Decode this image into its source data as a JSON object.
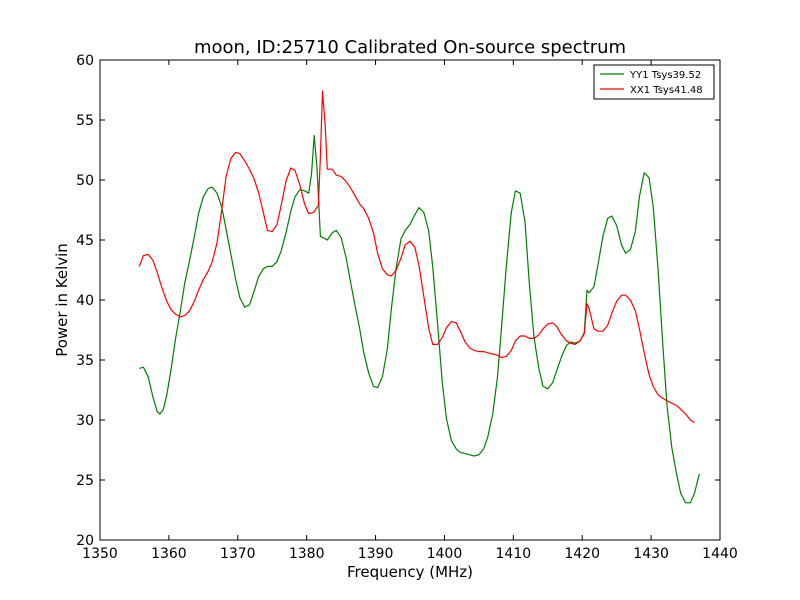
{
  "chart_data": {
    "type": "line",
    "title": "moon, ID:25710 Calibrated On-source spectrum",
    "xlabel": "Frequency (MHz)",
    "ylabel": "Power in Kelvin",
    "xlim": [
      1350,
      1440
    ],
    "ylim": [
      20,
      60
    ],
    "xticks": [
      1350,
      1360,
      1370,
      1380,
      1390,
      1400,
      1410,
      1420,
      1430,
      1440
    ],
    "yticks": [
      20,
      25,
      30,
      35,
      40,
      45,
      50,
      55,
      60
    ],
    "grid": false,
    "legend": {
      "position": "top-right"
    },
    "series": [
      {
        "name": "YY1 Tsys39.52",
        "color": "#008000",
        "points": [
          [
            1355.7,
            34.3
          ],
          [
            1356.3,
            34.4
          ],
          [
            1357.0,
            33.6
          ],
          [
            1357.7,
            31.9
          ],
          [
            1358.3,
            30.7
          ],
          [
            1358.7,
            30.5
          ],
          [
            1359.2,
            30.9
          ],
          [
            1359.7,
            32.1
          ],
          [
            1360.3,
            34.2
          ],
          [
            1361.0,
            36.9
          ],
          [
            1361.7,
            39.2
          ],
          [
            1362.3,
            41.4
          ],
          [
            1363.0,
            43.3
          ],
          [
            1363.7,
            45.3
          ],
          [
            1364.3,
            47.2
          ],
          [
            1365.0,
            48.6
          ],
          [
            1365.7,
            49.3
          ],
          [
            1366.3,
            49.4
          ],
          [
            1367.0,
            48.9
          ],
          [
            1367.7,
            47.7
          ],
          [
            1368.3,
            45.9
          ],
          [
            1369.0,
            43.8
          ],
          [
            1369.7,
            41.7
          ],
          [
            1370.3,
            40.2
          ],
          [
            1371.0,
            39.4
          ],
          [
            1371.7,
            39.6
          ],
          [
            1372.3,
            40.6
          ],
          [
            1373.0,
            41.9
          ],
          [
            1373.7,
            42.6
          ],
          [
            1374.3,
            42.8
          ],
          [
            1375.0,
            42.8
          ],
          [
            1375.7,
            43.2
          ],
          [
            1376.3,
            44.1
          ],
          [
            1377.0,
            45.6
          ],
          [
            1377.7,
            47.4
          ],
          [
            1378.3,
            48.6
          ],
          [
            1379.0,
            49.2
          ],
          [
            1379.7,
            49.1
          ],
          [
            1380.3,
            48.9
          ],
          [
            1380.7,
            50.5
          ],
          [
            1381.1,
            53.7
          ],
          [
            1381.5,
            51.0
          ],
          [
            1382.0,
            45.3
          ],
          [
            1382.7,
            45.1
          ],
          [
            1383.0,
            45.0
          ],
          [
            1383.7,
            45.6
          ],
          [
            1384.3,
            45.8
          ],
          [
            1385.0,
            45.2
          ],
          [
            1385.7,
            43.6
          ],
          [
            1386.3,
            41.7
          ],
          [
            1387.0,
            39.6
          ],
          [
            1387.7,
            37.6
          ],
          [
            1388.3,
            35.6
          ],
          [
            1389.0,
            33.9
          ],
          [
            1389.7,
            32.8
          ],
          [
            1390.3,
            32.7
          ],
          [
            1391.0,
            33.6
          ],
          [
            1391.7,
            35.9
          ],
          [
            1392.3,
            39.3
          ],
          [
            1393.0,
            42.7
          ],
          [
            1393.7,
            45.1
          ],
          [
            1394.3,
            45.8
          ],
          [
            1395.0,
            46.3
          ],
          [
            1395.7,
            47.1
          ],
          [
            1396.3,
            47.7
          ],
          [
            1397.0,
            47.3
          ],
          [
            1397.7,
            45.8
          ],
          [
            1398.3,
            42.8
          ],
          [
            1399.0,
            38.0
          ],
          [
            1399.7,
            33.0
          ],
          [
            1400.3,
            30.1
          ],
          [
            1401.0,
            28.3
          ],
          [
            1401.7,
            27.6
          ],
          [
            1402.3,
            27.3
          ],
          [
            1403.0,
            27.2
          ],
          [
            1403.7,
            27.1
          ],
          [
            1404.3,
            27.0
          ],
          [
            1405.0,
            27.1
          ],
          [
            1405.7,
            27.6
          ],
          [
            1406.3,
            28.6
          ],
          [
            1407.0,
            30.5
          ],
          [
            1407.7,
            33.6
          ],
          [
            1408.3,
            37.8
          ],
          [
            1409.0,
            42.9
          ],
          [
            1409.7,
            47.3
          ],
          [
            1410.3,
            49.1
          ],
          [
            1411.0,
            48.9
          ],
          [
            1411.7,
            46.5
          ],
          [
            1412.3,
            41.5
          ],
          [
            1413.0,
            36.9
          ],
          [
            1413.7,
            34.3
          ],
          [
            1414.3,
            32.8
          ],
          [
            1415.0,
            32.6
          ],
          [
            1415.7,
            33.1
          ],
          [
            1416.3,
            34.1
          ],
          [
            1417.0,
            35.3
          ],
          [
            1417.7,
            36.2
          ],
          [
            1418.3,
            36.5
          ],
          [
            1419.0,
            36.4
          ],
          [
            1419.7,
            36.6
          ],
          [
            1420.3,
            37.3
          ],
          [
            1420.7,
            40.8
          ],
          [
            1421.0,
            40.6
          ],
          [
            1421.7,
            41.1
          ],
          [
            1422.3,
            43.0
          ],
          [
            1423.0,
            45.3
          ],
          [
            1423.7,
            46.8
          ],
          [
            1424.3,
            47.0
          ],
          [
            1425.0,
            46.2
          ],
          [
            1425.7,
            44.6
          ],
          [
            1426.3,
            43.9
          ],
          [
            1427.0,
            44.2
          ],
          [
            1427.7,
            45.7
          ],
          [
            1428.3,
            48.6
          ],
          [
            1429.0,
            50.6
          ],
          [
            1429.7,
            50.2
          ],
          [
            1430.3,
            47.8
          ],
          [
            1431.0,
            42.6
          ],
          [
            1431.7,
            36.3
          ],
          [
            1432.3,
            31.2
          ],
          [
            1433.0,
            27.7
          ],
          [
            1433.7,
            25.5
          ],
          [
            1434.3,
            23.9
          ],
          [
            1435.0,
            23.1
          ],
          [
            1435.7,
            23.1
          ],
          [
            1436.3,
            23.9
          ],
          [
            1437.0,
            25.5
          ]
        ]
      },
      {
        "name": "XX1 Tsys41.48",
        "color": "#ff0000",
        "points": [
          [
            1355.7,
            42.8
          ],
          [
            1356.3,
            43.7
          ],
          [
            1357.0,
            43.8
          ],
          [
            1357.7,
            43.3
          ],
          [
            1358.3,
            42.3
          ],
          [
            1359.0,
            41.0
          ],
          [
            1359.7,
            39.9
          ],
          [
            1360.3,
            39.2
          ],
          [
            1361.0,
            38.8
          ],
          [
            1361.7,
            38.6
          ],
          [
            1362.3,
            38.7
          ],
          [
            1363.0,
            39.1
          ],
          [
            1363.7,
            39.9
          ],
          [
            1364.3,
            40.8
          ],
          [
            1365.0,
            41.7
          ],
          [
            1365.7,
            42.4
          ],
          [
            1366.3,
            43.2
          ],
          [
            1367.0,
            44.8
          ],
          [
            1367.7,
            47.6
          ],
          [
            1368.3,
            50.3
          ],
          [
            1369.0,
            51.8
          ],
          [
            1369.7,
            52.3
          ],
          [
            1370.3,
            52.2
          ],
          [
            1371.0,
            51.6
          ],
          [
            1371.7,
            50.9
          ],
          [
            1372.3,
            50.2
          ],
          [
            1373.0,
            49.0
          ],
          [
            1373.7,
            47.3
          ],
          [
            1374.3,
            45.8
          ],
          [
            1375.0,
            45.7
          ],
          [
            1375.7,
            46.3
          ],
          [
            1376.3,
            47.9
          ],
          [
            1377.0,
            49.9
          ],
          [
            1377.7,
            51.0
          ],
          [
            1378.3,
            50.8
          ],
          [
            1379.0,
            49.6
          ],
          [
            1379.7,
            48.0
          ],
          [
            1380.3,
            47.2
          ],
          [
            1381.0,
            47.3
          ],
          [
            1381.7,
            47.9
          ],
          [
            1382.0,
            52.0
          ],
          [
            1382.3,
            57.4
          ],
          [
            1382.7,
            54.4
          ],
          [
            1383.0,
            50.9
          ],
          [
            1383.7,
            50.9
          ],
          [
            1384.3,
            50.4
          ],
          [
            1385.0,
            50.3
          ],
          [
            1385.7,
            49.9
          ],
          [
            1386.3,
            49.4
          ],
          [
            1387.0,
            48.7
          ],
          [
            1387.7,
            48.0
          ],
          [
            1388.3,
            47.6
          ],
          [
            1389.0,
            46.8
          ],
          [
            1389.7,
            45.6
          ],
          [
            1390.3,
            43.9
          ],
          [
            1391.0,
            42.6
          ],
          [
            1391.7,
            42.1
          ],
          [
            1392.3,
            42.0
          ],
          [
            1393.0,
            42.5
          ],
          [
            1393.7,
            43.5
          ],
          [
            1394.3,
            44.6
          ],
          [
            1395.0,
            44.9
          ],
          [
            1395.7,
            44.4
          ],
          [
            1396.3,
            42.9
          ],
          [
            1397.0,
            40.3
          ],
          [
            1397.7,
            37.7
          ],
          [
            1398.3,
            36.3
          ],
          [
            1399.0,
            36.3
          ],
          [
            1399.7,
            36.9
          ],
          [
            1400.3,
            37.7
          ],
          [
            1401.0,
            38.2
          ],
          [
            1401.7,
            38.1
          ],
          [
            1402.3,
            37.4
          ],
          [
            1403.0,
            36.5
          ],
          [
            1403.7,
            36.0
          ],
          [
            1404.3,
            35.8
          ],
          [
            1405.0,
            35.7
          ],
          [
            1405.7,
            35.7
          ],
          [
            1406.3,
            35.6
          ],
          [
            1407.0,
            35.5
          ],
          [
            1407.7,
            35.4
          ],
          [
            1408.3,
            35.2
          ],
          [
            1409.0,
            35.3
          ],
          [
            1409.7,
            35.8
          ],
          [
            1410.3,
            36.6
          ],
          [
            1411.0,
            37.0
          ],
          [
            1411.7,
            37.0
          ],
          [
            1412.3,
            36.8
          ],
          [
            1413.0,
            36.8
          ],
          [
            1413.7,
            37.1
          ],
          [
            1414.3,
            37.6
          ],
          [
            1415.0,
            38.0
          ],
          [
            1415.7,
            38.1
          ],
          [
            1416.3,
            37.8
          ],
          [
            1417.0,
            37.1
          ],
          [
            1417.7,
            36.6
          ],
          [
            1418.3,
            36.4
          ],
          [
            1419.0,
            36.3
          ],
          [
            1419.7,
            36.6
          ],
          [
            1420.3,
            37.2
          ],
          [
            1420.7,
            39.7
          ],
          [
            1421.0,
            39.3
          ],
          [
            1421.7,
            37.6
          ],
          [
            1422.3,
            37.4
          ],
          [
            1423.0,
            37.4
          ],
          [
            1423.7,
            37.9
          ],
          [
            1424.3,
            38.9
          ],
          [
            1425.0,
            39.9
          ],
          [
            1425.7,
            40.4
          ],
          [
            1426.3,
            40.4
          ],
          [
            1427.0,
            40.0
          ],
          [
            1427.7,
            39.1
          ],
          [
            1428.3,
            37.6
          ],
          [
            1429.0,
            35.6
          ],
          [
            1429.7,
            33.8
          ],
          [
            1430.3,
            32.8
          ],
          [
            1431.0,
            32.1
          ],
          [
            1431.7,
            31.8
          ],
          [
            1432.3,
            31.6
          ],
          [
            1433.0,
            31.4
          ],
          [
            1433.7,
            31.2
          ],
          [
            1434.3,
            30.9
          ],
          [
            1435.0,
            30.5
          ],
          [
            1435.7,
            30.0
          ],
          [
            1436.3,
            29.8
          ]
        ]
      }
    ]
  }
}
